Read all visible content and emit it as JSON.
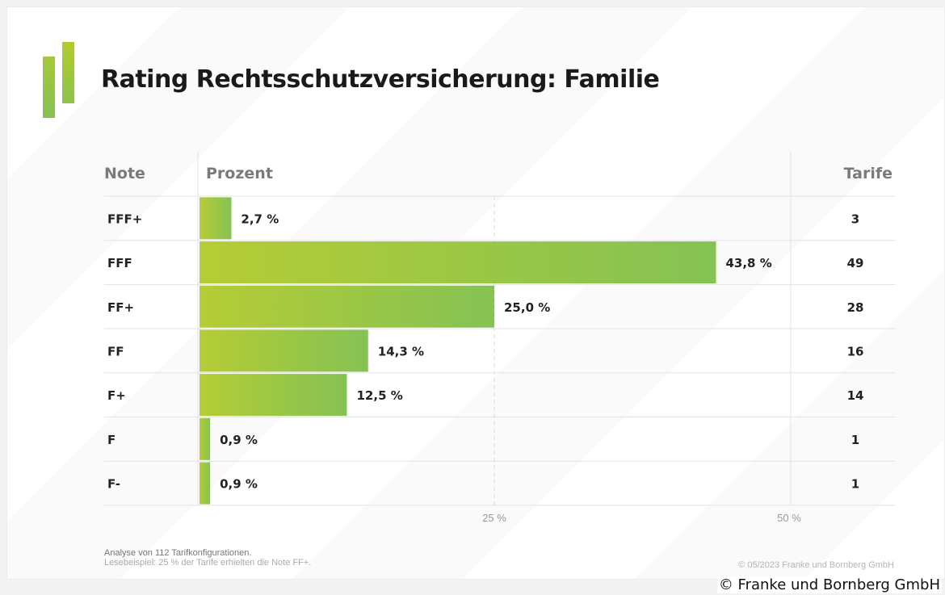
{
  "title": "Rating Rechtsschutzversicherung: Familie",
  "chart_data": {
    "type": "bar",
    "orientation": "horizontal",
    "columns": {
      "note": "Note",
      "percent": "Prozent",
      "tarife": "Tarife"
    },
    "categories": [
      "FFF+",
      "FFF",
      "FF+",
      "FF",
      "F+",
      "F",
      "F-"
    ],
    "values": [
      2.7,
      43.8,
      25.0,
      14.3,
      12.5,
      0.9,
      0.9
    ],
    "value_labels": [
      "2,7 %",
      "43,8 %",
      "25,0 %",
      "14,3 %",
      "12,5 %",
      "0,9 %",
      "0,9 %"
    ],
    "tarife": [
      "3",
      "49",
      "28",
      "16",
      "14",
      "1",
      "1"
    ],
    "xlim": [
      0,
      50
    ],
    "ticks": [
      {
        "value": 25,
        "label": "25 %"
      },
      {
        "value": 50,
        "label": "50 %"
      }
    ],
    "gridlines": "dashed at 25 %",
    "bar_gradient": [
      "#b5cc35",
      "#85c254"
    ]
  },
  "footnote": {
    "line1": "Analyse von 112 Tarifkonfigurationen.",
    "line2": "Lesebeispiel: 25 % der Tarife erhielten die Note FF+."
  },
  "copyright_inner": "© 05/2023 Franke und Bornberg GmbH",
  "credit": "© Franke und Bornberg GmbH"
}
